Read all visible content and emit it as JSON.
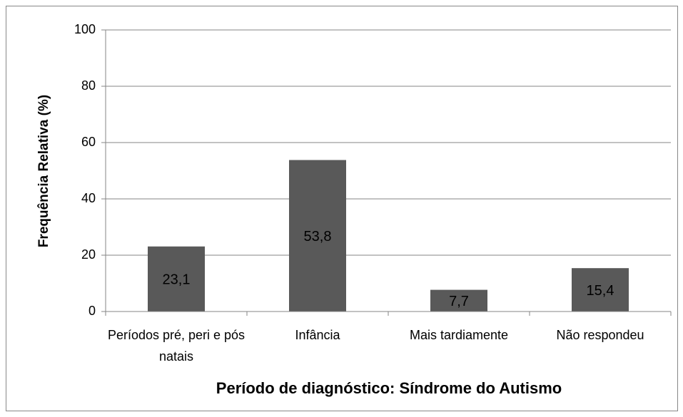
{
  "chart_data": {
    "type": "bar",
    "x_label": "Período de diagnóstico: Síndrome do Autismo",
    "y_label": "Frequência Relativa (%)",
    "categories": [
      "Períodos pré, peri e pós natais",
      "Infância",
      "Mais tardiamente",
      "Não respondeu"
    ],
    "values": [
      23.1,
      53.8,
      7.7,
      15.4
    ],
    "value_labels": [
      "23,1",
      "53,8",
      "7,7",
      "15,4"
    ],
    "color": "#595959",
    "ylim": [
      0,
      100
    ],
    "yticks": [
      0,
      20,
      40,
      60,
      80,
      100
    ],
    "grid": true
  }
}
